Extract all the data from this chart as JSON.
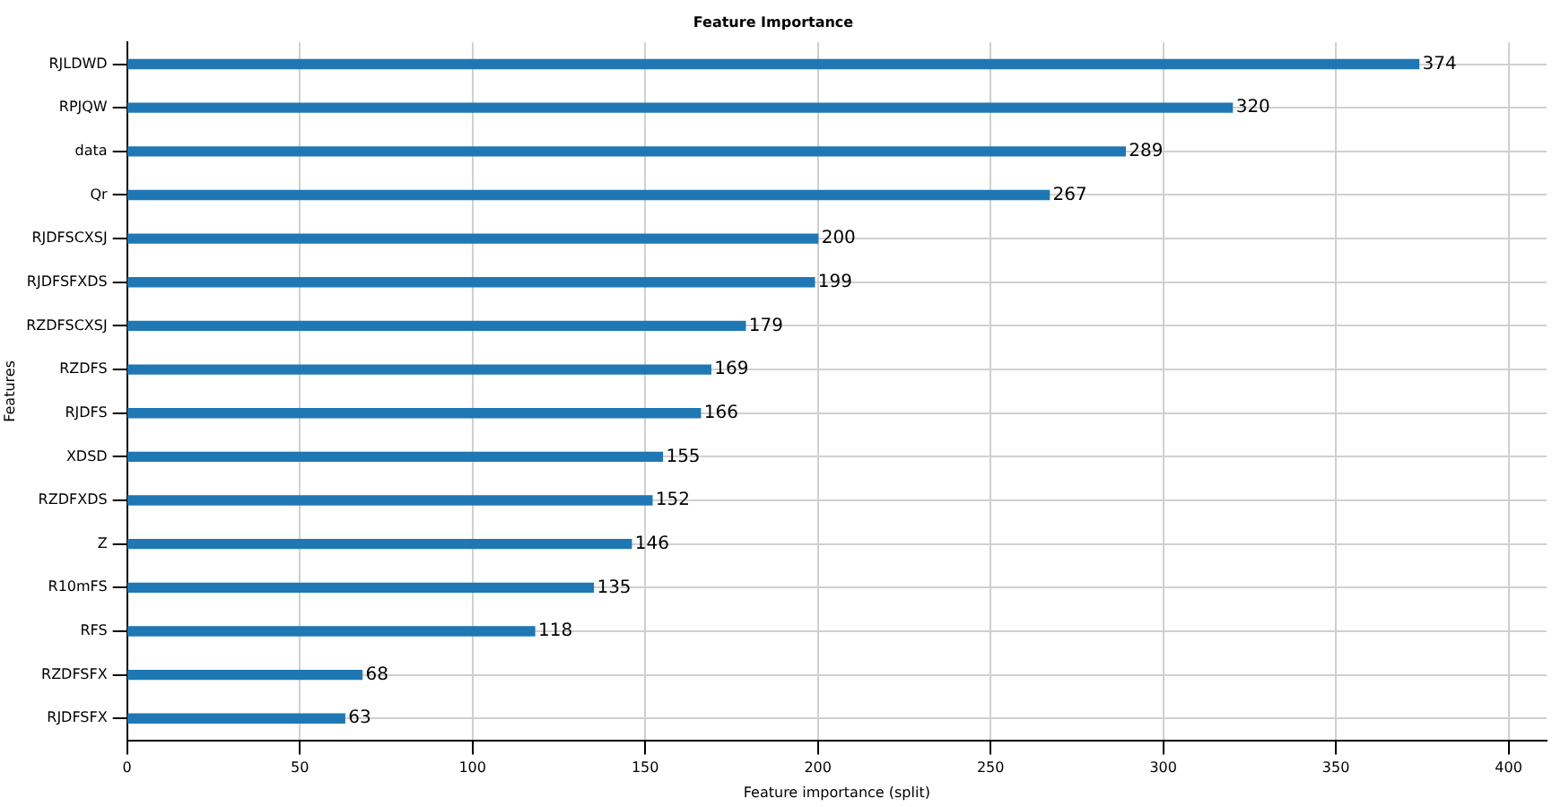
{
  "chart_data": {
    "type": "bar",
    "orientation": "horizontal",
    "title": "Feature Importance",
    "xlabel": "Feature importance (split)",
    "ylabel": "Features",
    "categories": [
      "RJLDWD",
      "RPJQW",
      "data",
      "Qr",
      "RJDFSCXSJ",
      "RJDFSFXDS",
      "RZDFSCXSJ",
      "RZDFS",
      "RJDFS",
      "XDSD",
      "RZDFXDS",
      "Z",
      "R10mFS",
      "RFS",
      "RZDFSFX",
      "RJDFSFX"
    ],
    "values": [
      374,
      320,
      289,
      267,
      200,
      199,
      179,
      169,
      166,
      155,
      152,
      146,
      135,
      118,
      68,
      63
    ],
    "color": "#1f77b4",
    "xlim": [
      0,
      411
    ],
    "xticks": [
      0,
      50,
      100,
      150,
      200,
      250,
      300,
      350,
      400
    ],
    "grid": true,
    "data_labels": true
  }
}
